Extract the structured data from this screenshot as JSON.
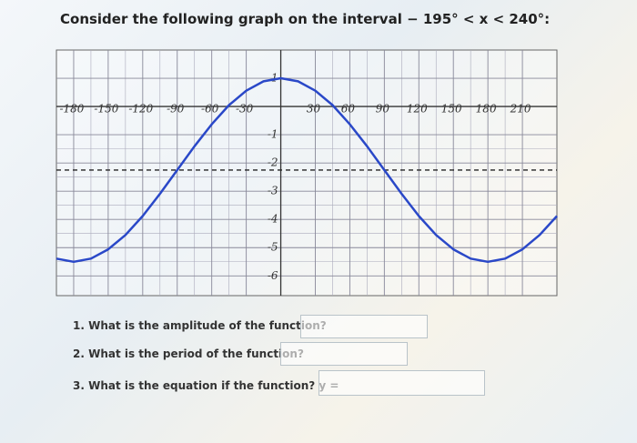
{
  "title": "Consider the following graph on the interval − 195° < x < 240°:",
  "chart_data": {
    "type": "line",
    "color": "#2a48c8",
    "x": [
      -195,
      -180,
      -165,
      -150,
      -135,
      -120,
      -105,
      -90,
      -75,
      -60,
      -45,
      -30,
      -15,
      0,
      15,
      30,
      45,
      60,
      75,
      90,
      105,
      120,
      135,
      150,
      165,
      180,
      195,
      210,
      225,
      240
    ],
    "values": [
      -5.39,
      -5.5,
      -5.39,
      -5.06,
      -4.55,
      -3.88,
      -3.09,
      -2.25,
      -1.41,
      -0.63,
      0.05,
      0.56,
      0.89,
      1,
      0.89,
      0.56,
      0.05,
      -0.63,
      -1.41,
      -2.25,
      -3.09,
      -3.88,
      -4.55,
      -5.06,
      -5.39,
      -5.5,
      -5.39,
      -5.06,
      -4.55,
      -3.88
    ],
    "midline": -2.25,
    "xlim": [
      -195,
      240
    ],
    "ylim": [
      -6.7,
      2
    ],
    "xticks": [
      -180,
      -150,
      -120,
      -90,
      -60,
      -30,
      30,
      60,
      90,
      120,
      150,
      180,
      210
    ],
    "yticks": [
      1,
      -1,
      -2,
      -3,
      -4,
      -5,
      -6
    ],
    "grid": true
  },
  "questions": [
    {
      "text": "1. What is the amplitude of the function?"
    },
    {
      "text": "2. What is the period of the function?"
    },
    {
      "text": "3. What is the equation if the function? y ="
    }
  ]
}
